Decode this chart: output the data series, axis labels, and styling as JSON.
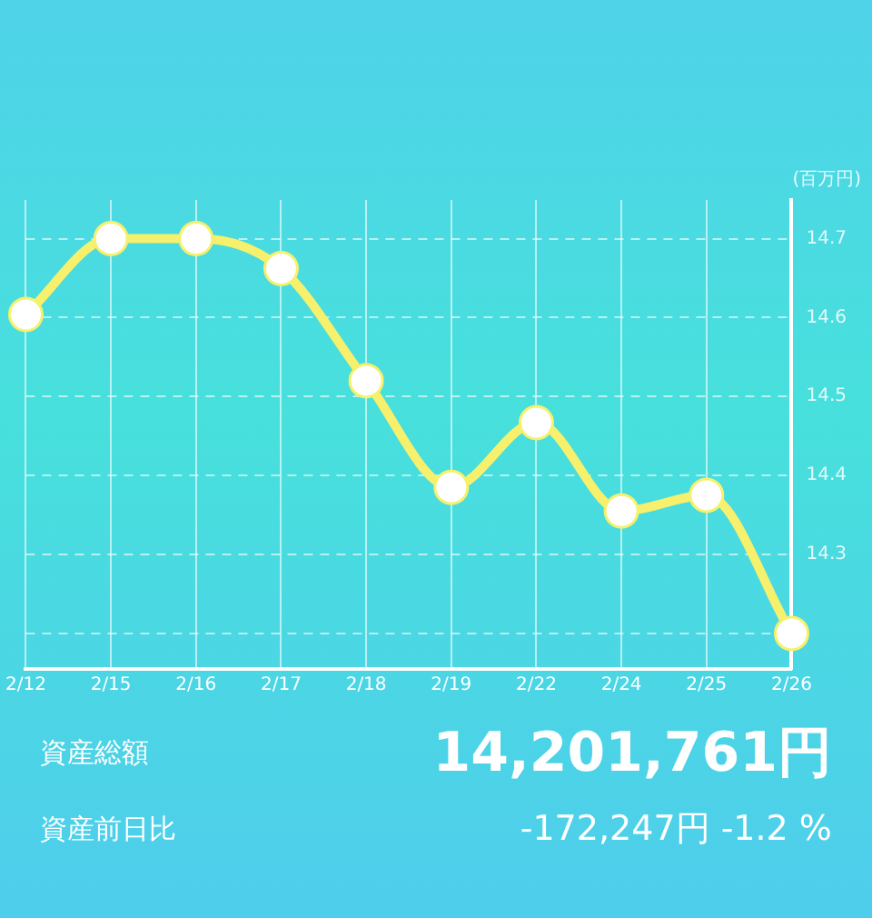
{
  "chart_data": {
    "type": "line",
    "ylabel": "(百万円)",
    "categories": [
      "2/12",
      "2/15",
      "2/16",
      "2/17",
      "2/18",
      "2/19",
      "2/22",
      "2/24",
      "2/25",
      "2/26"
    ],
    "series": [
      {
        "color": "#f6f06c",
        "values": [
          14.604,
          14.7,
          14.7,
          14.662,
          14.52,
          14.385,
          14.467,
          14.355,
          14.375,
          14.2
        ]
      }
    ],
    "ylim": [
      14.155,
      14.749
    ],
    "yticks": [
      {
        "value": 14.2,
        "label": null
      },
      14.3,
      14.4,
      14.5,
      14.6,
      14.7
    ],
    "grid": true,
    "legend": false,
    "marker": "circle",
    "line_style": "solid",
    "annotations": [
      "資産総額",
      "14,201,761円",
      "資産前日比",
      "-172,247円 -1.2 %"
    ]
  }
}
